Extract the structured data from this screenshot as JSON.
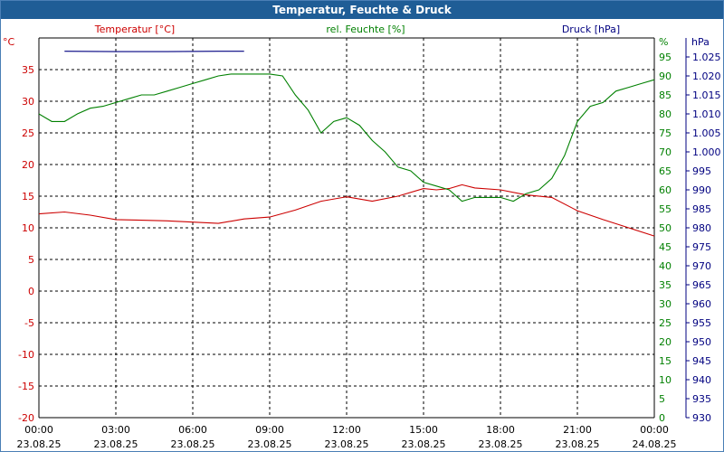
{
  "chart_data": {
    "type": "line",
    "title": "Temperatur, Feuchte & Druck",
    "x_start": "23.08.25 00:00",
    "x_end": "24.08.25 00:00",
    "x_tick_times": [
      "00:00",
      "03:00",
      "06:00",
      "09:00",
      "12:00",
      "15:00",
      "18:00",
      "21:00",
      "00:00"
    ],
    "x_tick_dates": [
      "23.08.25",
      "23.08.25",
      "23.08.25",
      "23.08.25",
      "23.08.25",
      "23.08.25",
      "23.08.25",
      "23.08.25",
      "24.08.25"
    ],
    "x_tick_hours": [
      0,
      3,
      6,
      9,
      12,
      15,
      18,
      21,
      24
    ],
    "grid": true,
    "axes": {
      "temperature": {
        "label": "Temperatur [°C]",
        "unit": "°C",
        "side": "left",
        "color": "#cc0000",
        "ylim": [
          -20,
          40
        ],
        "ticks": [
          -20,
          -15,
          -10,
          -5,
          0,
          5,
          10,
          15,
          20,
          25,
          30,
          35
        ]
      },
      "humidity": {
        "label": "rel. Feuchte [%]",
        "unit": "%",
        "side": "right",
        "color": "#008000",
        "ylim": [
          0,
          100
        ],
        "ticks": [
          0,
          5,
          10,
          15,
          20,
          25,
          30,
          35,
          40,
          45,
          50,
          55,
          60,
          65,
          70,
          75,
          80,
          85,
          90,
          95
        ]
      },
      "pressure": {
        "label": "Druck [hPa]",
        "unit": "hPa",
        "side": "right",
        "color": "#000080",
        "ylim": [
          930,
          1030
        ],
        "tick_labels": [
          "930",
          "935",
          "940",
          "945",
          "950",
          "955",
          "960",
          "965",
          "970",
          "975",
          "980",
          "985",
          "990",
          "995",
          "1.000",
          "1.005",
          "1.010",
          "1.015",
          "1.020",
          "1.025"
        ],
        "tick_values": [
          930,
          935,
          940,
          945,
          950,
          955,
          960,
          965,
          970,
          975,
          980,
          985,
          990,
          995,
          1000,
          1005,
          1010,
          1015,
          1020,
          1025
        ]
      }
    },
    "series": [
      {
        "name": "Temperatur [°C]",
        "axis": "temperature",
        "color": "#cc0000",
        "x_hours": [
          0,
          1,
          2,
          3,
          4,
          5,
          6,
          7,
          8,
          9,
          10,
          11,
          12,
          13,
          14,
          15,
          15.5,
          16,
          16.5,
          17,
          18,
          19,
          20,
          21,
          22,
          23,
          24
        ],
        "values": [
          12.2,
          12.5,
          12.0,
          11.3,
          11.2,
          11.1,
          10.9,
          10.7,
          11.4,
          11.7,
          12.8,
          14.2,
          14.9,
          14.2,
          15.0,
          16.2,
          16.0,
          16.2,
          16.8,
          16.3,
          16.0,
          15.2,
          14.8,
          12.7,
          11.3,
          10.0,
          8.7
        ]
      },
      {
        "name": "rel. Feuchte [%]",
        "axis": "humidity",
        "color": "#008000",
        "x_hours": [
          0,
          0.5,
          1,
          1.5,
          2,
          2.5,
          3,
          3.5,
          4,
          4.5,
          5,
          5.5,
          6,
          6.5,
          7,
          7.5,
          8,
          8.5,
          9,
          9.5,
          10,
          10.5,
          11,
          11.5,
          12,
          12.5,
          13,
          13.5,
          14,
          14.5,
          15,
          15.5,
          16,
          16.5,
          17,
          17.5,
          18,
          18.5,
          19,
          19.5,
          20,
          20.5,
          21,
          21.5,
          22,
          22.5,
          23,
          23.5,
          24
        ],
        "values": [
          80,
          78,
          78,
          80,
          81.5,
          82,
          83,
          84,
          85,
          85,
          86,
          87,
          88,
          89,
          90,
          90.5,
          90.5,
          90.5,
          90.5,
          90,
          85,
          81,
          75,
          78,
          79,
          77,
          73,
          70,
          66,
          65,
          62,
          61,
          60,
          57,
          58,
          58,
          58,
          57,
          59,
          60,
          63,
          69,
          78,
          82,
          83,
          86,
          87,
          88,
          89
        ]
      },
      {
        "name": "Druck [hPa]",
        "axis": "pressure",
        "color": "#000080",
        "x_hours": [
          1,
          3,
          5,
          7,
          8
        ],
        "values": [
          1026.5,
          1026.4,
          1026.4,
          1026.5,
          1026.5
        ]
      }
    ]
  }
}
